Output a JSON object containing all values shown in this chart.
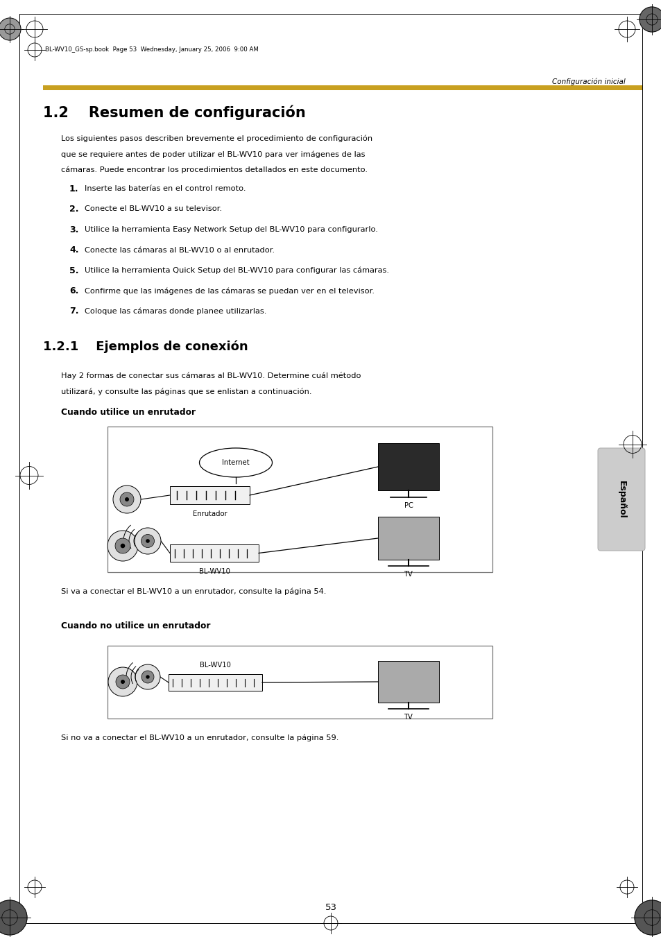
{
  "page_width": 9.54,
  "page_height": 13.51,
  "bg_color": "#ffffff",
  "header_text": "BL-WV10_GS-sp.book  Page 53  Wednesday, January 25, 2006  9:00 AM",
  "section_label": "Configuración inicial",
  "gold_bar_color": "#C8A020",
  "section_title": "1.2    Resumen de configuración",
  "intro_line1": "Los siguientes pasos describen brevemente el procedimiento de configuración",
  "intro_line2": "que se requiere antes de poder utilizar el BL-WV10 para ver imágenes de las",
  "intro_line3": "cámaras. Puede encontrar los procedimientos detallados en este documento.",
  "steps": [
    "Inserte las baterías en el control remoto.",
    "Conecte el BL-WV10 a su televisor.",
    "Utilice la herramienta Easy Network Setup del BL-WV10 para configurarlo.",
    "Conecte las cámaras al BL-WV10 o al enrutador.",
    "Utilice la herramienta Quick Setup del BL-WV10 para configurar las cámaras.",
    "Confirme que las imágenes de las cámaras se puedan ver en el televisor.",
    "Coloque las cámaras donde planee utilizarlas."
  ],
  "subsection_title": "1.2.1    Ejemplos de conexión",
  "subsection_intro1": "Hay 2 formas de conectar sus cámaras al BL-WV10. Determine cuál método",
  "subsection_intro2": "utilizará, y consulte las páginas que se enlistan a continuación.",
  "subhead1": "Cuando utilice un enrutador",
  "caption1": "Si va a conectar el BL-WV10 a un enrutador, consulte la página 54.",
  "subhead2": "Cuando no utilice un enrutador",
  "caption2": "Si no va a conectar el BL-WV10 a un enrutador, consulte la página 59.",
  "page_number": "53",
  "espanol_tab": "Español",
  "tab_bg": "#cccccc"
}
